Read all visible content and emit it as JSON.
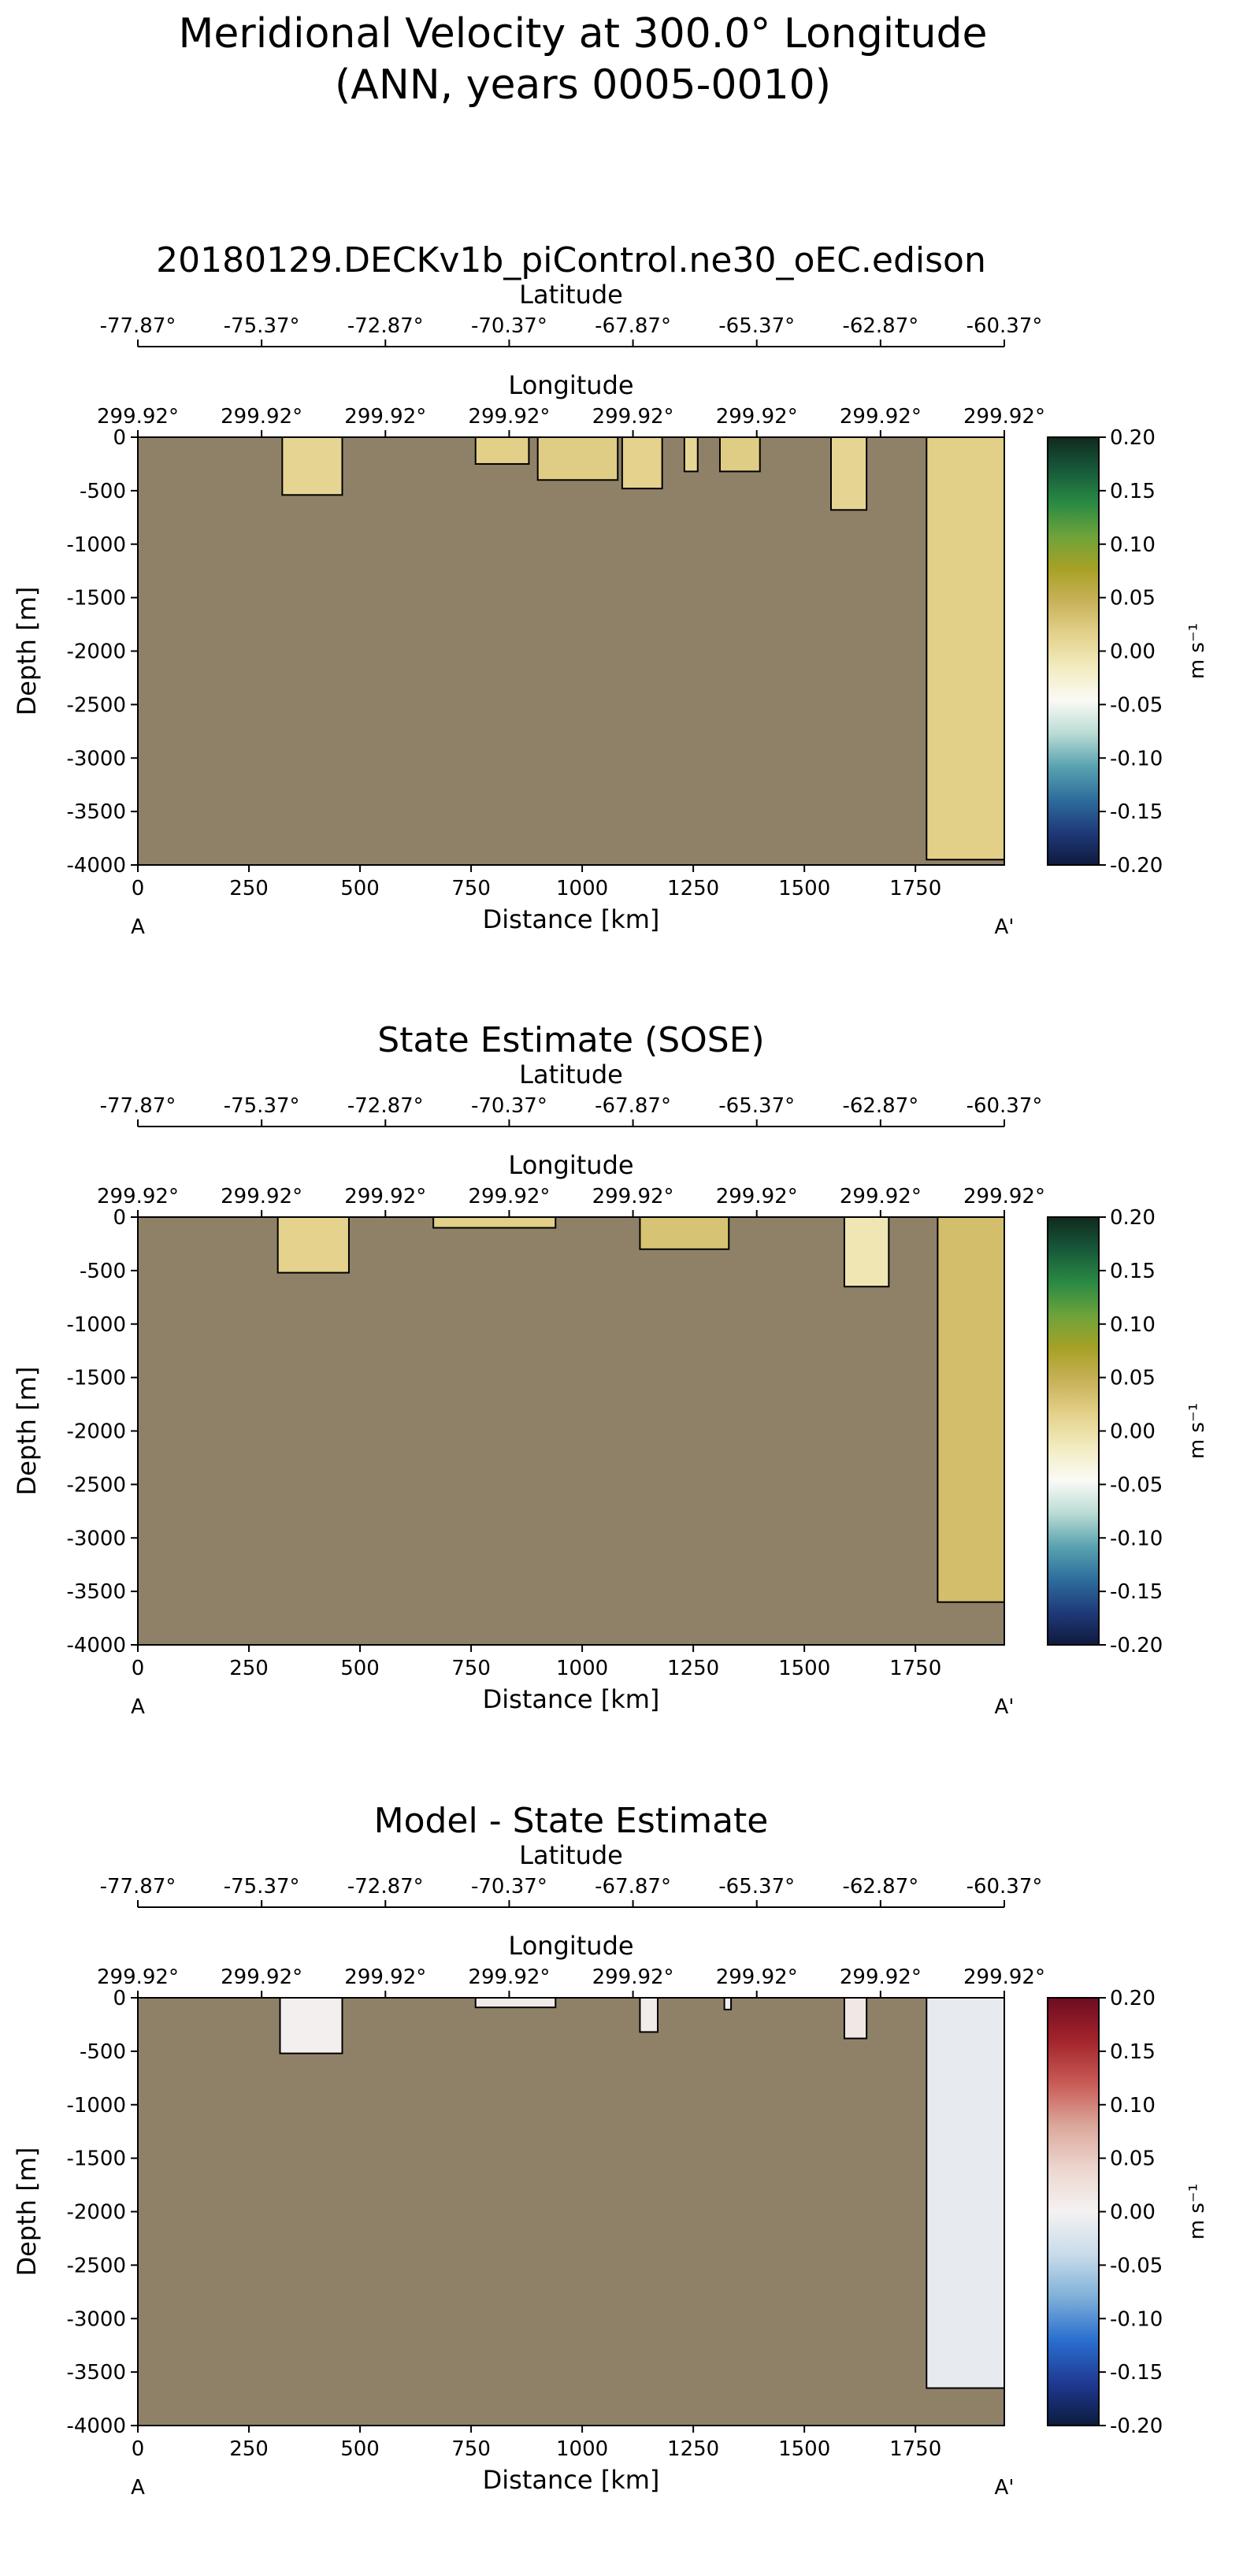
{
  "figure": {
    "title_line1": "Meridional Velocity at 300.0° Longitude",
    "title_line2": "(ANN, years 0005-0010)"
  },
  "colors": {
    "land": "#8f8168",
    "sequential": [
      "#0f1a3d",
      "#1f3a7a",
      "#2e6e9c",
      "#5aa3b0",
      "#b9dcd4",
      "#fbfaf5",
      "#f2ecc0",
      "#e4d28c",
      "#c9b25a",
      "#a7a126",
      "#6ea33a",
      "#2a8a44",
      "#175a3a",
      "#102a1e"
    ],
    "diverging": [
      "#0c1b3d",
      "#1f3a93",
      "#2a6fcf",
      "#7fb0d8",
      "#c8dcea",
      "#f4f2f2",
      "#ecd6ce",
      "#dca89c",
      "#c85b55",
      "#a3242b",
      "#6e0c22"
    ]
  },
  "chart_data": [
    {
      "type": "heatmap",
      "title": "20180129.DECKv1b_piControl.ne30_oEC.edison",
      "xlabel": "Distance [km]",
      "ylabel": "Depth [m]",
      "xlim": [
        0,
        1950
      ],
      "ylim": [
        -4000,
        0
      ],
      "xticks": [
        0,
        250,
        500,
        750,
        1000,
        1250,
        1500,
        1750
      ],
      "yticks": [
        0,
        -500,
        -1000,
        -1500,
        -2000,
        -2500,
        -3000,
        -3500,
        -4000
      ],
      "top_axis_latitude": {
        "label": "Latitude",
        "ticks": [
          "-77.87°",
          "-75.37°",
          "-72.87°",
          "-70.37°",
          "-67.87°",
          "-65.37°",
          "-62.87°",
          "-60.37°"
        ]
      },
      "top_axis_longitude": {
        "label": "Longitude",
        "ticks": [
          "299.92°",
          "299.92°",
          "299.92°",
          "299.92°",
          "299.92°",
          "299.92°",
          "299.92°",
          "299.92°"
        ]
      },
      "endpoints": {
        "start": "A",
        "end": "A'"
      },
      "colorbar": {
        "label": "m s⁻¹",
        "range": [
          -0.2,
          0.2
        ],
        "ticks": [
          "0.20",
          "0.15",
          "0.10",
          "0.05",
          "0.00",
          "-0.05",
          "-0.10",
          "-0.15",
          "-0.20"
        ],
        "colormap": "sequential"
      },
      "water_regions": [
        {
          "x0": 325,
          "x1": 460,
          "depth": 540,
          "value": 0.012
        },
        {
          "x0": 760,
          "x1": 880,
          "depth": 250,
          "value": 0.018
        },
        {
          "x0": 900,
          "x1": 1080,
          "depth": 400,
          "value": 0.02
        },
        {
          "x0": 1090,
          "x1": 1180,
          "depth": 480,
          "value": 0.015
        },
        {
          "x0": 1230,
          "x1": 1260,
          "depth": 320,
          "value": 0.01
        },
        {
          "x0": 1310,
          "x1": 1400,
          "depth": 320,
          "value": 0.02
        },
        {
          "x0": 1560,
          "x1": 1640,
          "depth": 680,
          "value": 0.012
        },
        {
          "x0": 1775,
          "x1": 1950,
          "depth": 3950,
          "value": 0.018
        }
      ]
    },
    {
      "type": "heatmap",
      "title": "State Estimate (SOSE)",
      "xlabel": "Distance [km]",
      "ylabel": "Depth [m]",
      "xlim": [
        0,
        1950
      ],
      "ylim": [
        -4000,
        0
      ],
      "xticks": [
        0,
        250,
        500,
        750,
        1000,
        1250,
        1500,
        1750
      ],
      "yticks": [
        0,
        -500,
        -1000,
        -1500,
        -2000,
        -2500,
        -3000,
        -3500,
        -4000
      ],
      "top_axis_latitude": {
        "label": "Latitude",
        "ticks": [
          "-77.87°",
          "-75.37°",
          "-72.87°",
          "-70.37°",
          "-67.87°",
          "-65.37°",
          "-62.87°",
          "-60.37°"
        ]
      },
      "top_axis_longitude": {
        "label": "Longitude",
        "ticks": [
          "299.92°",
          "299.92°",
          "299.92°",
          "299.92°",
          "299.92°",
          "299.92°",
          "299.92°",
          "299.92°"
        ]
      },
      "endpoints": {
        "start": "A",
        "end": "A'"
      },
      "colorbar": {
        "label": "m s⁻¹",
        "range": [
          -0.2,
          0.2
        ],
        "ticks": [
          "0.20",
          "0.15",
          "0.10",
          "0.05",
          "0.00",
          "-0.05",
          "-0.10",
          "-0.15",
          "-0.20"
        ],
        "colormap": "sequential"
      },
      "water_regions": [
        {
          "x0": 315,
          "x1": 475,
          "depth": 520,
          "value": 0.015
        },
        {
          "x0": 665,
          "x1": 940,
          "depth": 100,
          "value": 0.018
        },
        {
          "x0": 1130,
          "x1": 1330,
          "depth": 300,
          "value": 0.03
        },
        {
          "x0": 1590,
          "x1": 1690,
          "depth": 650,
          "value": -0.008
        },
        {
          "x0": 1800,
          "x1": 1950,
          "depth": 3600,
          "value": 0.035
        }
      ]
    },
    {
      "type": "heatmap",
      "title": "Model - State Estimate",
      "xlabel": "Distance [km]",
      "ylabel": "Depth [m]",
      "xlim": [
        0,
        1950
      ],
      "ylim": [
        -4000,
        0
      ],
      "xticks": [
        0,
        250,
        500,
        750,
        1000,
        1250,
        1500,
        1750
      ],
      "yticks": [
        0,
        -500,
        -1000,
        -1500,
        -2000,
        -2500,
        -3000,
        -3500,
        -4000
      ],
      "top_axis_latitude": {
        "label": "Latitude",
        "ticks": [
          "-77.87°",
          "-75.37°",
          "-72.87°",
          "-70.37°",
          "-67.87°",
          "-65.37°",
          "-62.87°",
          "-60.37°"
        ]
      },
      "top_axis_longitude": {
        "label": "Longitude",
        "ticks": [
          "299.92°",
          "299.92°",
          "299.92°",
          "299.92°",
          "299.92°",
          "299.92°",
          "299.92°",
          "299.92°"
        ]
      },
      "endpoints": {
        "start": "A",
        "end": "A'"
      },
      "colorbar": {
        "label": "m s⁻¹",
        "range": [
          -0.2,
          0.2
        ],
        "ticks": [
          "0.20",
          "0.15",
          "0.10",
          "0.05",
          "0.00",
          "-0.05",
          "-0.10",
          "-0.15",
          "-0.20"
        ],
        "colormap": "diverging"
      },
      "water_regions": [
        {
          "x0": 320,
          "x1": 460,
          "depth": 520,
          "value": 0.004
        },
        {
          "x0": 760,
          "x1": 940,
          "depth": 90,
          "value": 0.012
        },
        {
          "x0": 1130,
          "x1": 1170,
          "depth": 320,
          "value": 0.01
        },
        {
          "x0": 1320,
          "x1": 1335,
          "depth": 110,
          "value": 0.005
        },
        {
          "x0": 1590,
          "x1": 1640,
          "depth": 380,
          "value": 0.015
        },
        {
          "x0": 1775,
          "x1": 1950,
          "depth": 3650,
          "value": -0.012
        }
      ]
    }
  ]
}
